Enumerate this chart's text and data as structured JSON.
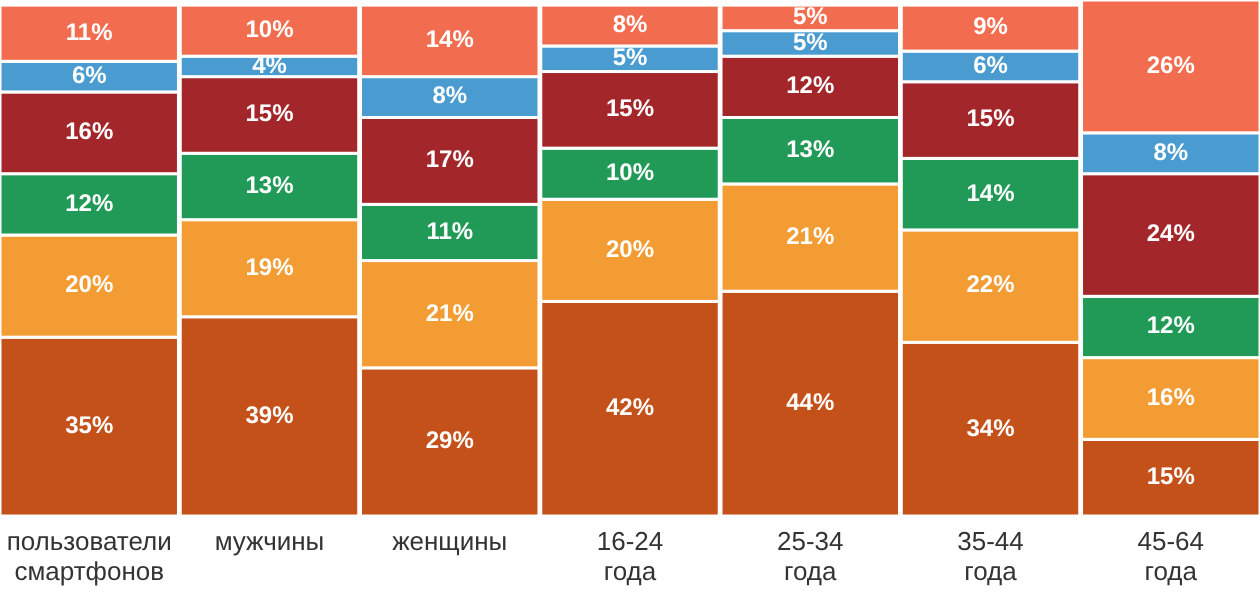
{
  "chart_data": {
    "type": "bar",
    "stacked": true,
    "tick_labels": "x",
    "ylim": [
      0,
      101
    ],
    "categories": [
      "пользователи смартфонов",
      "мужчины",
      "женщины",
      "16-24 года",
      "25-34 года",
      "35-44 года",
      "45-64 года"
    ],
    "series": [
      {
        "color": "#c4501a",
        "values": [
          35,
          39,
          29,
          42,
          44,
          34,
          15
        ],
        "value_labels": [
          "35%",
          "39%",
          "29%",
          "42%",
          "44%",
          "34%",
          "15%"
        ]
      },
      {
        "color": "#f39c33",
        "values": [
          20,
          19,
          21,
          20,
          21,
          22,
          16
        ],
        "value_labels": [
          "20%",
          "19%",
          "21%",
          "20%",
          "21%",
          "22%",
          "16%"
        ]
      },
      {
        "color": "#219a58",
        "values": [
          12,
          13,
          11,
          10,
          13,
          14,
          12
        ],
        "value_labels": [
          "12%",
          "13%",
          "11%",
          "10%",
          "13%",
          "14%",
          "12%"
        ]
      },
      {
        "color": "#a3272a",
        "values": [
          16,
          15,
          17,
          15,
          12,
          15,
          24
        ],
        "value_labels": [
          "16%",
          "15%",
          "17%",
          "15%",
          "12%",
          "15%",
          "24%"
        ]
      },
      {
        "color": "#4a9bd0",
        "values": [
          6,
          4,
          8,
          5,
          5,
          6,
          8
        ],
        "value_labels": [
          "6%",
          "4%",
          "8%",
          "5%",
          "5%",
          "6%",
          "8%"
        ]
      },
      {
        "color": "#f26d50",
        "values": [
          11,
          10,
          14,
          8,
          5,
          9,
          26
        ],
        "value_labels": [
          "11%",
          "10%",
          "14%",
          "8%",
          "5%",
          "9%",
          "26%"
        ]
      }
    ]
  }
}
